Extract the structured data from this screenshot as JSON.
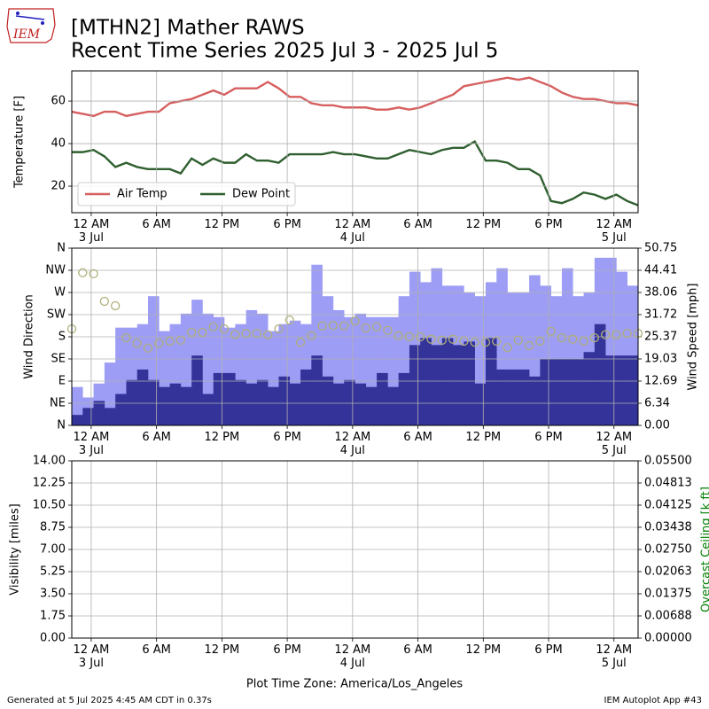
{
  "title": "[MTHN2] Mather RAWS",
  "subtitle": "Recent Time Series 2025 Jul 3 - 2025 Jul 5",
  "logo": "IEM",
  "xlabel": "Plot Time Zone: America/Los_Angeles",
  "footer_left": "Generated at 5 Jul 2025 4:45 AM CDT in 0.37s",
  "footer_right": "IEM Autoplot App #43",
  "chart_data": [
    {
      "type": "line",
      "ylabel": "Temperature [F]",
      "grid": true,
      "legend": "lower left",
      "xlim": [
        "2025-07-02T22:13",
        "2025-07-05T02:13"
      ],
      "xticks": [
        {
          "value": "2025-07-03T00:00",
          "label": "12 AM\n3 Jul"
        },
        {
          "value": "2025-07-03T06:00",
          "label": "6 AM"
        },
        {
          "value": "2025-07-03T12:00",
          "label": "12 PM"
        },
        {
          "value": "2025-07-03T18:00",
          "label": "6 PM"
        },
        {
          "value": "2025-07-04T00:00",
          "label": "12 AM\n4 Jul"
        },
        {
          "value": "2025-07-04T06:00",
          "label": "6 AM"
        },
        {
          "value": "2025-07-04T12:00",
          "label": "12 PM"
        },
        {
          "value": "2025-07-04T18:00",
          "label": "6 PM"
        },
        {
          "value": "2025-07-05T00:00",
          "label": "12 AM\n5 Jul"
        }
      ],
      "ylim": [
        7.5,
        74.2
      ],
      "yticks": [
        20,
        40,
        60
      ],
      "x": [
        "2025-07-02T22:13",
        "2025-07-02T23:13",
        "2025-07-03T00:13",
        "2025-07-03T01:13",
        "2025-07-03T02:13",
        "2025-07-03T03:13",
        "2025-07-03T04:13",
        "2025-07-03T05:13",
        "2025-07-03T06:13",
        "2025-07-03T07:13",
        "2025-07-03T08:13",
        "2025-07-03T09:13",
        "2025-07-03T10:13",
        "2025-07-03T11:13",
        "2025-07-03T12:13",
        "2025-07-03T13:13",
        "2025-07-03T14:13",
        "2025-07-03T15:13",
        "2025-07-03T16:13",
        "2025-07-03T17:13",
        "2025-07-03T18:13",
        "2025-07-03T19:13",
        "2025-07-03T20:13",
        "2025-07-03T21:13",
        "2025-07-03T22:13",
        "2025-07-03T23:13",
        "2025-07-04T00:13",
        "2025-07-04T01:13",
        "2025-07-04T02:13",
        "2025-07-04T03:13",
        "2025-07-04T04:13",
        "2025-07-04T05:13",
        "2025-07-04T06:13",
        "2025-07-04T07:13",
        "2025-07-04T08:13",
        "2025-07-04T09:13",
        "2025-07-04T10:13",
        "2025-07-04T11:13",
        "2025-07-04T12:13",
        "2025-07-04T13:13",
        "2025-07-04T14:13",
        "2025-07-04T15:13",
        "2025-07-04T16:13",
        "2025-07-04T17:13",
        "2025-07-04T18:13",
        "2025-07-04T19:13",
        "2025-07-04T20:13",
        "2025-07-04T21:13",
        "2025-07-04T22:13",
        "2025-07-04T23:13",
        "2025-07-05T00:13",
        "2025-07-05T01:13",
        "2025-07-05T02:13"
      ],
      "series": [
        {
          "name": "Air Temp",
          "color": "#d65f5f",
          "values": [
            55,
            54,
            53,
            55,
            55,
            53,
            54,
            55,
            55,
            59,
            60,
            61,
            63,
            65,
            63,
            66,
            66,
            66,
            69,
            66,
            62,
            62,
            59,
            58,
            58,
            57,
            57,
            57,
            56,
            56,
            57,
            56,
            57,
            59,
            61,
            63,
            67,
            68,
            69,
            70,
            71,
            70,
            71,
            69,
            67,
            64,
            62,
            61,
            61,
            60,
            59,
            59,
            58
          ]
        },
        {
          "name": "Dew Point",
          "color": "#2f5f2f",
          "values": [
            36,
            36,
            37,
            34,
            29,
            31,
            29,
            28,
            28,
            28,
            26,
            33,
            30,
            33,
            31,
            31,
            35,
            32,
            32,
            31,
            35,
            35,
            35,
            35,
            36,
            35,
            35,
            34,
            33,
            33,
            35,
            37,
            36,
            35,
            37,
            38,
            38,
            41,
            32,
            32,
            31,
            28,
            28,
            25,
            13,
            12,
            14,
            17,
            16,
            14,
            16,
            13,
            11
          ]
        }
      ]
    },
    {
      "type": "bar",
      "ylabel": "Wind Direction",
      "y2label": "Wind Speed [mph]",
      "grid": true,
      "xlim": [
        "2025-07-02T22:13",
        "2025-07-05T02:13"
      ],
      "xticks": [
        {
          "value": "2025-07-03T00:00",
          "label": "12 AM\n3 Jul"
        },
        {
          "value": "2025-07-03T06:00",
          "label": "6 AM"
        },
        {
          "value": "2025-07-03T12:00",
          "label": "12 PM"
        },
        {
          "value": "2025-07-03T18:00",
          "label": "6 PM"
        },
        {
          "value": "2025-07-04T00:00",
          "label": "12 AM\n4 Jul"
        },
        {
          "value": "2025-07-04T06:00",
          "label": "6 AM"
        },
        {
          "value": "2025-07-04T12:00",
          "label": "12 PM"
        },
        {
          "value": "2025-07-04T18:00",
          "label": "6 PM"
        },
        {
          "value": "2025-07-05T00:00",
          "label": "12 AM\n5 Jul"
        }
      ],
      "ylim": [
        0,
        360
      ],
      "yticks": [
        {
          "value": 0,
          "label": "N"
        },
        {
          "value": 45,
          "label": "NE"
        },
        {
          "value": 90,
          "label": "E"
        },
        {
          "value": 135,
          "label": "SE"
        },
        {
          "value": 180,
          "label": "S"
        },
        {
          "value": 225,
          "label": "SW"
        },
        {
          "value": 270,
          "label": "W"
        },
        {
          "value": 315,
          "label": "NW"
        },
        {
          "value": 360,
          "label": "N"
        }
      ],
      "y2lim": [
        0,
        50.75
      ],
      "y2ticks": [
        {
          "value": 0,
          "label": "0.00"
        },
        {
          "value": 6.34,
          "label": "6.34"
        },
        {
          "value": 12.69,
          "label": "12.69"
        },
        {
          "value": 19.03,
          "label": "19.03"
        },
        {
          "value": 25.37,
          "label": "25.37"
        },
        {
          "value": 31.72,
          "label": "31.72"
        },
        {
          "value": 38.06,
          "label": "38.06"
        },
        {
          "value": 44.41,
          "label": "44.41"
        },
        {
          "value": 50.75,
          "label": "50.75"
        }
      ],
      "x": [
        "2025-07-02T22:13",
        "2025-07-02T23:13",
        "2025-07-03T00:13",
        "2025-07-03T01:13",
        "2025-07-03T02:13",
        "2025-07-03T03:13",
        "2025-07-03T04:13",
        "2025-07-03T05:13",
        "2025-07-03T06:13",
        "2025-07-03T07:13",
        "2025-07-03T08:13",
        "2025-07-03T09:13",
        "2025-07-03T10:13",
        "2025-07-03T11:13",
        "2025-07-03T12:13",
        "2025-07-03T13:13",
        "2025-07-03T14:13",
        "2025-07-03T15:13",
        "2025-07-03T16:13",
        "2025-07-03T17:13",
        "2025-07-03T18:13",
        "2025-07-03T19:13",
        "2025-07-03T20:13",
        "2025-07-03T21:13",
        "2025-07-03T22:13",
        "2025-07-03T23:13",
        "2025-07-04T00:13",
        "2025-07-04T01:13",
        "2025-07-04T02:13",
        "2025-07-04T03:13",
        "2025-07-04T04:13",
        "2025-07-04T05:13",
        "2025-07-04T06:13",
        "2025-07-04T07:13",
        "2025-07-04T08:13",
        "2025-07-04T09:13",
        "2025-07-04T10:13",
        "2025-07-04T11:13",
        "2025-07-04T12:13",
        "2025-07-04T13:13",
        "2025-07-04T14:13",
        "2025-07-04T15:13",
        "2025-07-04T16:13",
        "2025-07-04T17:13",
        "2025-07-04T18:13",
        "2025-07-04T19:13",
        "2025-07-04T20:13",
        "2025-07-04T21:13",
        "2025-07-04T22:13",
        "2025-07-04T23:13",
        "2025-07-05T00:13",
        "2025-07-05T01:13",
        "2025-07-05T02:13"
      ],
      "series": [
        {
          "type": "bar",
          "axis": "y2",
          "color": "#9d9df6",
          "values": [
            11,
            8,
            12,
            18,
            28,
            28,
            29,
            37,
            27,
            29,
            32,
            36,
            32,
            31,
            28,
            29,
            33,
            32,
            27,
            29,
            30,
            29,
            46,
            37,
            33,
            31,
            32,
            31,
            31,
            31,
            37,
            44,
            41,
            45,
            40,
            40,
            38,
            37,
            41,
            45,
            38,
            38,
            43,
            40,
            37,
            45,
            37,
            38,
            48,
            48,
            44,
            40,
            44
          ]
        },
        {
          "type": "bar",
          "axis": "y2",
          "color": "#333399",
          "values": [
            3,
            5,
            7,
            5,
            9,
            13,
            16,
            13,
            11,
            12,
            11,
            20,
            9,
            15,
            15,
            13,
            12,
            13,
            11,
            14,
            12,
            16,
            20,
            14,
            12,
            13,
            12,
            11,
            15,
            11,
            15,
            23,
            25,
            23,
            25,
            23,
            24,
            12,
            25,
            16,
            16,
            16,
            14,
            19,
            19,
            19,
            19,
            21,
            29,
            20,
            20,
            20,
            14
          ]
        },
        {
          "type": "scatter",
          "color": "#b0b07a",
          "values": [
            196,
            310,
            308,
            252,
            243,
            178,
            167,
            157,
            167,
            171,
            173,
            189,
            189,
            200,
            196,
            185,
            187,
            187,
            184,
            196,
            214,
            169,
            182,
            202,
            203,
            202,
            212,
            198,
            200,
            193,
            182,
            180,
            180,
            175,
            173,
            175,
            171,
            169,
            169,
            171,
            158,
            173,
            162,
            171,
            191,
            178,
            175,
            171,
            178,
            184,
            184,
            187,
            187
          ]
        }
      ]
    },
    {
      "type": "line",
      "ylabel": "Visibility [miles]",
      "y2label": "Overcast Ceiling [k ft]",
      "y2label_color": "#008000",
      "grid": true,
      "xlim": [
        "2025-07-02T22:13",
        "2025-07-05T02:13"
      ],
      "xticks": [
        {
          "value": "2025-07-03T00:00",
          "label": "12 AM\n3 Jul"
        },
        {
          "value": "2025-07-03T06:00",
          "label": "6 AM"
        },
        {
          "value": "2025-07-03T12:00",
          "label": "12 PM"
        },
        {
          "value": "2025-07-03T18:00",
          "label": "6 PM"
        },
        {
          "value": "2025-07-04T00:00",
          "label": "12 AM\n4 Jul"
        },
        {
          "value": "2025-07-04T06:00",
          "label": "6 AM"
        },
        {
          "value": "2025-07-04T12:00",
          "label": "12 PM"
        },
        {
          "value": "2025-07-04T18:00",
          "label": "6 PM"
        },
        {
          "value": "2025-07-05T00:00",
          "label": "12 AM\n5 Jul"
        }
      ],
      "ylim": [
        0,
        14
      ],
      "yticks": [
        {
          "value": 0,
          "label": "0.00"
        },
        {
          "value": 1.75,
          "label": "1.75"
        },
        {
          "value": 3.5,
          "label": "3.50"
        },
        {
          "value": 5.25,
          "label": "5.25"
        },
        {
          "value": 7,
          "label": "7.00"
        },
        {
          "value": 8.75,
          "label": "8.75"
        },
        {
          "value": 10.5,
          "label": "10.50"
        },
        {
          "value": 12.25,
          "label": "12.25"
        },
        {
          "value": 14,
          "label": "14.00"
        }
      ],
      "y2lim": [
        0,
        0.055
      ],
      "y2ticks": [
        {
          "value": 0,
          "label": "0.00000"
        },
        {
          "value": 0.00688,
          "label": "0.00688"
        },
        {
          "value": 0.01375,
          "label": "0.01375"
        },
        {
          "value": 0.02063,
          "label": "0.02063"
        },
        {
          "value": 0.0275,
          "label": "0.02750"
        },
        {
          "value": 0.03438,
          "label": "0.03438"
        },
        {
          "value": 0.04125,
          "label": "0.04125"
        },
        {
          "value": 0.04813,
          "label": "0.04813"
        },
        {
          "value": 0.055,
          "label": "0.05500"
        }
      ],
      "series": []
    }
  ]
}
